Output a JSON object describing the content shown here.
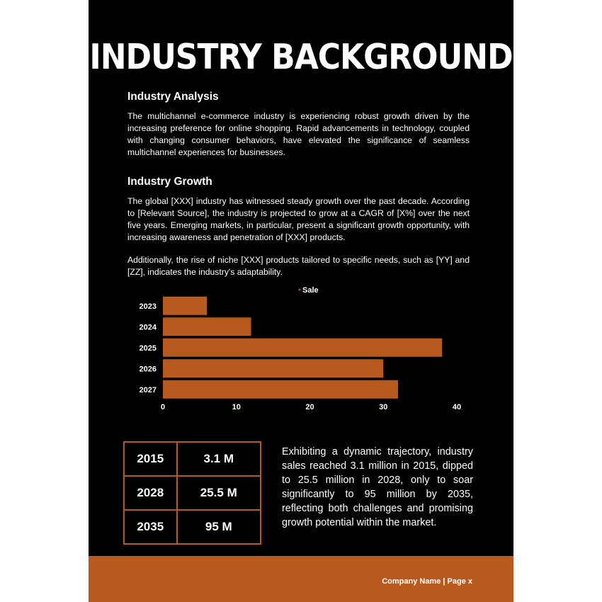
{
  "page": {
    "title": "INDUSTRY BACKGROUND",
    "colors": {
      "background": "#000000",
      "accent": "#b85a1e",
      "text": "#ffffff",
      "bar": "#b85a1e"
    }
  },
  "sections": {
    "analysis": {
      "heading": "Industry Analysis",
      "body": "The multichannel e-commerce industry is experiencing robust growth driven by the increasing preference for online shopping. Rapid advancements in technology, coupled with changing consumer behaviors, have elevated the significance of seamless multichannel experiences for businesses."
    },
    "growth": {
      "heading": "Industry Growth",
      "body": "The global [XXX] industry has witnessed steady growth over the past decade. According to [Relevant Source], the industry is projected to grow at a CAGR of [X%] over the next five years. Emerging markets, in particular, present a significant growth opportunity, with increasing awareness and penetration of [XXX] products.",
      "body2": "Additionally, the rise of niche [XXX] products tailored to specific needs, such as [YY] and [ZZ], indicates the industry's adaptability."
    }
  },
  "chart_data": {
    "type": "bar",
    "orientation": "horizontal",
    "categories": [
      "2023",
      "2024",
      "2025",
      "2026",
      "2027"
    ],
    "series": [
      {
        "name": "Sale",
        "values": [
          6,
          12,
          38,
          30,
          32
        ],
        "color": "#b85a1e"
      }
    ],
    "xlim": [
      0,
      40
    ],
    "xticks": [
      0,
      10,
      20,
      30,
      40
    ],
    "legend": "top-center",
    "grid": false
  },
  "stats_table": {
    "rows": [
      {
        "year": "2015",
        "value": "3.1 M"
      },
      {
        "year": "2028",
        "value": "25.5 M"
      },
      {
        "year": "2035",
        "value": "95 M"
      }
    ]
  },
  "summary": {
    "text": "Exhibiting a dynamic trajectory, industry sales reached 3.1 million in 2015, dipped to 25.5 million in 2028, only to soar significantly to 95 million by 2035, reflecting both challenges and promising growth potential within the market."
  },
  "footer": {
    "text": "Company Name | Page x"
  }
}
